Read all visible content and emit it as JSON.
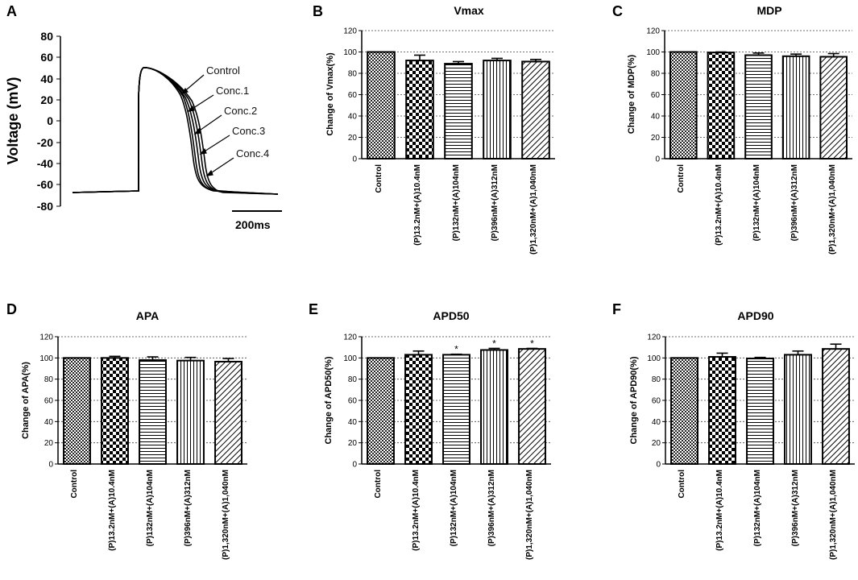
{
  "chart_data": [
    {
      "panel": "A",
      "type": "line",
      "title": "",
      "ylabel": "Voltage (mV)",
      "ylim": [
        -80,
        80
      ],
      "yticks": [
        80,
        60,
        40,
        20,
        0,
        -20,
        -40,
        -60,
        -80
      ],
      "scale_bar_label": "200ms",
      "series_labels": [
        "Control",
        "Conc.1",
        "Conc.2",
        "Conc.3",
        "Conc.4"
      ]
    },
    {
      "panel": "B",
      "type": "bar",
      "title": "Vmax",
      "ylabel": "Change of Vmax(%)",
      "ylim": [
        0,
        120
      ],
      "yticks": [
        0,
        20,
        40,
        60,
        80,
        100,
        120
      ],
      "categories": [
        "Control",
        "(P)13.2nM+(A)10.4nM",
        "(P)132nM+(A)104nM",
        "(P)396nM+(A)312nM",
        "(P)1,320nM+(A)1,040nM"
      ],
      "values": [
        100,
        92,
        89,
        92,
        91
      ],
      "errors": [
        0,
        5,
        2,
        2,
        2
      ],
      "sig": [
        "",
        "",
        "",
        "",
        ""
      ]
    },
    {
      "panel": "C",
      "type": "bar",
      "title": "MDP",
      "ylabel": "Change of MDP(%)",
      "ylim": [
        0,
        120
      ],
      "yticks": [
        0,
        20,
        40,
        60,
        80,
        100,
        120
      ],
      "categories": [
        "Control",
        "(P)13.2nM+(A)10.4nM",
        "(P)132nM+(A)104nM",
        "(P)396nM+(A)312nM",
        "(P)1,320nM+(A)1,040nM"
      ],
      "values": [
        100,
        99.5,
        97,
        96,
        95.5
      ],
      "errors": [
        0,
        0.5,
        2,
        2,
        3
      ],
      "sig": [
        "",
        "",
        "",
        "",
        ""
      ]
    },
    {
      "panel": "D",
      "type": "bar",
      "title": "APA",
      "ylabel": "Change of APA(%)",
      "ylim": [
        0,
        120
      ],
      "yticks": [
        0,
        20,
        40,
        60,
        80,
        100,
        120
      ],
      "categories": [
        "Control",
        "(P)13.2nM+(A)10.4nM",
        "(P)132nM+(A)104nM",
        "(P)396nM+(A)312nM",
        "(P)1,320nM+(A)1,040nM"
      ],
      "values": [
        100,
        100,
        98,
        97.5,
        96.5
      ],
      "errors": [
        0,
        1.5,
        3,
        3,
        3
      ],
      "sig": [
        "",
        "",
        "",
        "",
        ""
      ]
    },
    {
      "panel": "E",
      "type": "bar",
      "title": "APD50",
      "ylabel": "Change of APD50(%)",
      "ylim": [
        0,
        120
      ],
      "yticks": [
        0,
        20,
        40,
        60,
        80,
        100,
        120
      ],
      "categories": [
        "Control",
        "(P)13.2nM+(A)10.4nM",
        "(P)132nM+(A)104nM",
        "(P)396nM+(A)312nM",
        "(P)1,320nM+(A)1,040nM"
      ],
      "values": [
        100,
        103,
        103,
        107.5,
        108.5
      ],
      "errors": [
        0,
        3.5,
        0.5,
        1.5,
        0.5
      ],
      "sig": [
        "",
        "",
        "*",
        "*",
        "*"
      ]
    },
    {
      "panel": "F",
      "type": "bar",
      "title": "APD90",
      "ylabel": "Change of APD90(%)",
      "ylim": [
        0,
        120
      ],
      "yticks": [
        0,
        20,
        40,
        60,
        80,
        100,
        120
      ],
      "categories": [
        "Control",
        "(P)13.2nM+(A)10.4nM",
        "(P)132nM+(A)104nM",
        "(P)396nM+(A)312nM",
        "(P)1,320nM+(A)1,040nM"
      ],
      "values": [
        100,
        101,
        99.5,
        103,
        108.5
      ],
      "errors": [
        0,
        3.5,
        1,
        3.5,
        4.5
      ],
      "sig": [
        "",
        "",
        "",
        "",
        ""
      ]
    }
  ]
}
